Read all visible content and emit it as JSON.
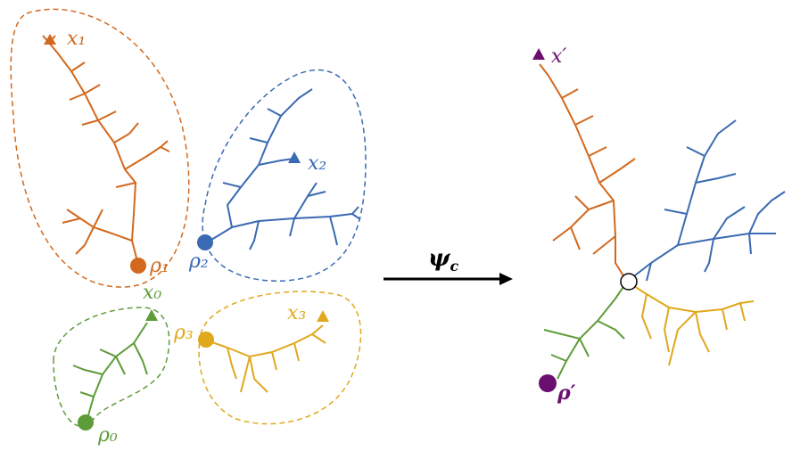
{
  "colors": {
    "orange": "#d2691e",
    "blue": "#3a6ab3",
    "green": "#5e9c3a",
    "gold": "#e0a81c",
    "purple": "#6a0f6e",
    "black": "#000000"
  },
  "labels": {
    "x1": "x₁",
    "x2": "x₂",
    "x0": "x₀",
    "x3": "x₃",
    "rho1": "ρ₁",
    "rho2": "ρ₂",
    "rho0": "ρ₀",
    "rho3": "ρ₃",
    "arrow": "ψ",
    "arrow_sub": "c",
    "xprime": "x′",
    "rhoprime": "ρ′"
  }
}
